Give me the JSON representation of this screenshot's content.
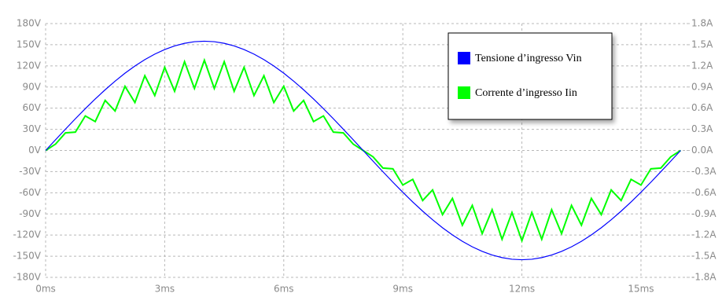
{
  "chart_data": {
    "type": "line",
    "x": [
      0,
      0.25,
      0.5,
      0.75,
      1,
      1.25,
      1.5,
      1.75,
      2,
      2.25,
      2.5,
      2.75,
      3,
      3.25,
      3.5,
      3.75,
      4,
      4.25,
      4.5,
      4.75,
      5,
      5.25,
      5.5,
      5.75,
      6,
      6.25,
      6.5,
      6.75,
      7,
      7.25,
      7.5,
      7.75,
      8,
      8.25,
      8.5,
      8.75,
      9,
      9.25,
      9.5,
      9.75,
      10,
      10.25,
      10.5,
      10.75,
      11,
      11.25,
      11.5,
      11.75,
      12,
      12.25,
      12.5,
      12.75,
      13,
      13.25,
      13.5,
      13.75,
      14,
      14.25,
      14.5,
      14.75,
      15,
      15.25,
      15.5,
      15.75,
      16
    ],
    "series": [
      {
        "name": "Tensione d’ingresso Vin",
        "color": "#0000ff",
        "axis": "y",
        "values": [
          0,
          15.2,
          30.2,
          45.0,
          59.3,
          73.1,
          86.1,
          98.3,
          109.6,
          119.8,
          128.9,
          136.7,
          143.2,
          148.3,
          152.0,
          154.3,
          155,
          154.3,
          152.0,
          148.3,
          143.2,
          136.7,
          128.9,
          119.8,
          109.6,
          98.3,
          86.1,
          73.1,
          59.3,
          45.0,
          30.2,
          15.2,
          0,
          -15.2,
          -30.2,
          -45.0,
          -59.3,
          -73.1,
          -86.1,
          -98.3,
          -109.6,
          -119.8,
          -128.9,
          -136.7,
          -143.2,
          -148.3,
          -152.0,
          -154.3,
          -155,
          -154.3,
          -152.0,
          -148.3,
          -143.2,
          -136.7,
          -128.9,
          -119.8,
          -109.6,
          -98.3,
          -86.1,
          -73.1,
          -59.3,
          -45.0,
          -30.2,
          -15.2,
          0
        ]
      },
      {
        "name": "Corrente d’ingresso Iin",
        "color": "#00ff00",
        "axis": "y2",
        "values": [
          0,
          0.09,
          0.25,
          0.26,
          0.49,
          0.41,
          0.71,
          0.56,
          0.91,
          0.68,
          1.06,
          0.78,
          1.18,
          0.84,
          1.26,
          0.88,
          1.28,
          0.88,
          1.26,
          0.84,
          1.18,
          0.78,
          1.06,
          0.68,
          0.91,
          0.56,
          0.71,
          0.41,
          0.49,
          0.26,
          0.25,
          0.09,
          0,
          -0.09,
          -0.25,
          -0.26,
          -0.49,
          -0.41,
          -0.71,
          -0.56,
          -0.91,
          -0.68,
          -1.06,
          -0.78,
          -1.18,
          -0.84,
          -1.26,
          -0.88,
          -1.28,
          -0.88,
          -1.26,
          -0.84,
          -1.18,
          -0.78,
          -1.06,
          -0.68,
          -0.91,
          -0.56,
          -0.71,
          -0.41,
          -0.49,
          -0.26,
          -0.25,
          -0.09,
          0
        ]
      }
    ],
    "xlim": [
      0,
      16.15
    ],
    "xticks": [
      {
        "value": 0,
        "label": "0ms"
      },
      {
        "value": 3,
        "label": "3ms"
      },
      {
        "value": 6,
        "label": "6ms"
      },
      {
        "value": 9,
        "label": "9ms"
      },
      {
        "value": 12,
        "label": "12ms"
      },
      {
        "value": 15,
        "label": "15ms"
      }
    ],
    "ylim": [
      -180,
      180
    ],
    "yticks": [
      {
        "value": 180,
        "label": "180V"
      },
      {
        "value": 150,
        "label": "150V"
      },
      {
        "value": 120,
        "label": "120V"
      },
      {
        "value": 90,
        "label": "90V"
      },
      {
        "value": 60,
        "label": "60V"
      },
      {
        "value": 30,
        "label": "30V"
      },
      {
        "value": 0,
        "label": "0V"
      },
      {
        "value": -30,
        "label": "-30V"
      },
      {
        "value": -60,
        "label": "-60V"
      },
      {
        "value": -90,
        "label": "-90V"
      },
      {
        "value": -120,
        "label": "-120V"
      },
      {
        "value": -150,
        "label": "-150V"
      },
      {
        "value": -180,
        "label": "-180V"
      }
    ],
    "y2lim": [
      -1.8,
      1.8
    ],
    "y2ticks": [
      {
        "value": 1.8,
        "label": "1.8A"
      },
      {
        "value": 1.5,
        "label": "1.5A"
      },
      {
        "value": 1.2,
        "label": "1.2A"
      },
      {
        "value": 0.9,
        "label": "0.9A"
      },
      {
        "value": 0.6,
        "label": "0.6A"
      },
      {
        "value": 0.3,
        "label": "0.3A"
      },
      {
        "value": 0,
        "label": "0.0A"
      },
      {
        "value": -0.3,
        "label": "-0.3A"
      },
      {
        "value": -0.6,
        "label": "-0.6A"
      },
      {
        "value": -0.9,
        "label": "-0.9A"
      },
      {
        "value": -1.2,
        "label": "-1.2A"
      },
      {
        "value": -1.5,
        "label": "-1.5A"
      },
      {
        "value": -1.8,
        "label": "-1.8A"
      }
    ],
    "grid": true,
    "legend": "upper right"
  }
}
